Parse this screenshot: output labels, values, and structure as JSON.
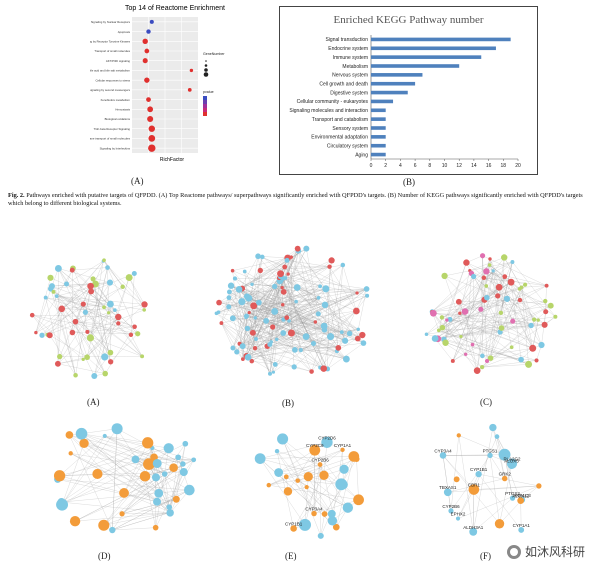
{
  "figure_caption": {
    "label": "Fig. 2.",
    "text": "Pathways enriched with putative targets of QFPDD. (A) Top Reactome pathways/ superpathways significantly enriched with QFPDD's targets. (B) Number of KEGG pathways significantly enriched with QFPDD's targets which belong to different biological systems."
  },
  "panel_labels": {
    "top_a": "(A)",
    "top_b": "(B)",
    "net_a": "(A)",
    "net_b": "(B)",
    "net_c": "(C)",
    "net_d": "(D)",
    "net_e": "(E)",
    "net_f": "(F)"
  },
  "chart_data": [
    {
      "type": "scatter",
      "title": "Top 14 of Reactome Enrichment",
      "xlabel": "RichFactor",
      "ylabel": "Pathway",
      "categories": [
        "Signaling by Nuclear Receptors",
        "Apoptosis",
        "Signaling by Receptor Tyrosine Kinases",
        "Transport of small molecules",
        "AKT/PI3K signaling",
        "Bile acid and bile salt metabolism",
        "Cellular responses to stress",
        "Intracellular signaling by second messengers",
        "Xenobiotics metabolism",
        "Hemostasis",
        "Biological oxidations",
        "TGF-beta Receptor Signaling",
        "Transmembrane transport of small molecules",
        "Signaling by Interleukins"
      ],
      "values": [
        0.12,
        0.1,
        0.08,
        0.09,
        0.08,
        0.36,
        0.09,
        0.35,
        0.1,
        0.11,
        0.11,
        0.12,
        0.12,
        0.12
      ],
      "sizes": [
        10,
        12,
        18,
        14,
        16,
        6,
        18,
        8,
        14,
        20,
        22,
        24,
        26,
        30
      ],
      "legend": {
        "size_title": "GeneNumber",
        "color_title": "pvalue"
      },
      "xlim": [
        0.0,
        0.4
      ]
    },
    {
      "type": "bar",
      "title": "Enriched KEGG Pathway number",
      "categories": [
        "Signal transduction",
        "Endocrine system",
        "Immune system",
        "Metabolism",
        "Nervous system",
        "Cell growth and death",
        "Digestive system",
        "Cellular community - eukaryotes",
        "Signaling molecules and interaction",
        "Transport and catabolism",
        "Sensory system",
        "Environmental adaptation",
        "Circulatory system",
        "Aging"
      ],
      "values": [
        19,
        17,
        15,
        12,
        7,
        6,
        5,
        3,
        2,
        2,
        2,
        2,
        2,
        2
      ],
      "xticks": [
        "0",
        "2",
        "4",
        "6",
        "8",
        "10",
        "12",
        "14",
        "16",
        "18",
        "20"
      ],
      "xlim": [
        0,
        20
      ],
      "color": "#4f81bd"
    }
  ],
  "networks": {
    "e_labels": [
      "CYP1A1",
      "CYP2B6",
      "CYP3A4",
      "CYP2D6",
      "CYP2C9",
      "CYP1B1"
    ],
    "f_labels": [
      "EPHX2",
      "CYP2B6",
      "CYP1B1",
      "CYP1A1",
      "CBR1",
      "ALDH3A1",
      "GRK2",
      "ALOX5",
      "CYP3A4",
      "AKR1C3",
      "PTGS2",
      "PTGS1",
      "PLA2G2",
      "TBXAS1",
      "ALOX12"
    ]
  },
  "watermark": {
    "text": "如沐风科研"
  }
}
